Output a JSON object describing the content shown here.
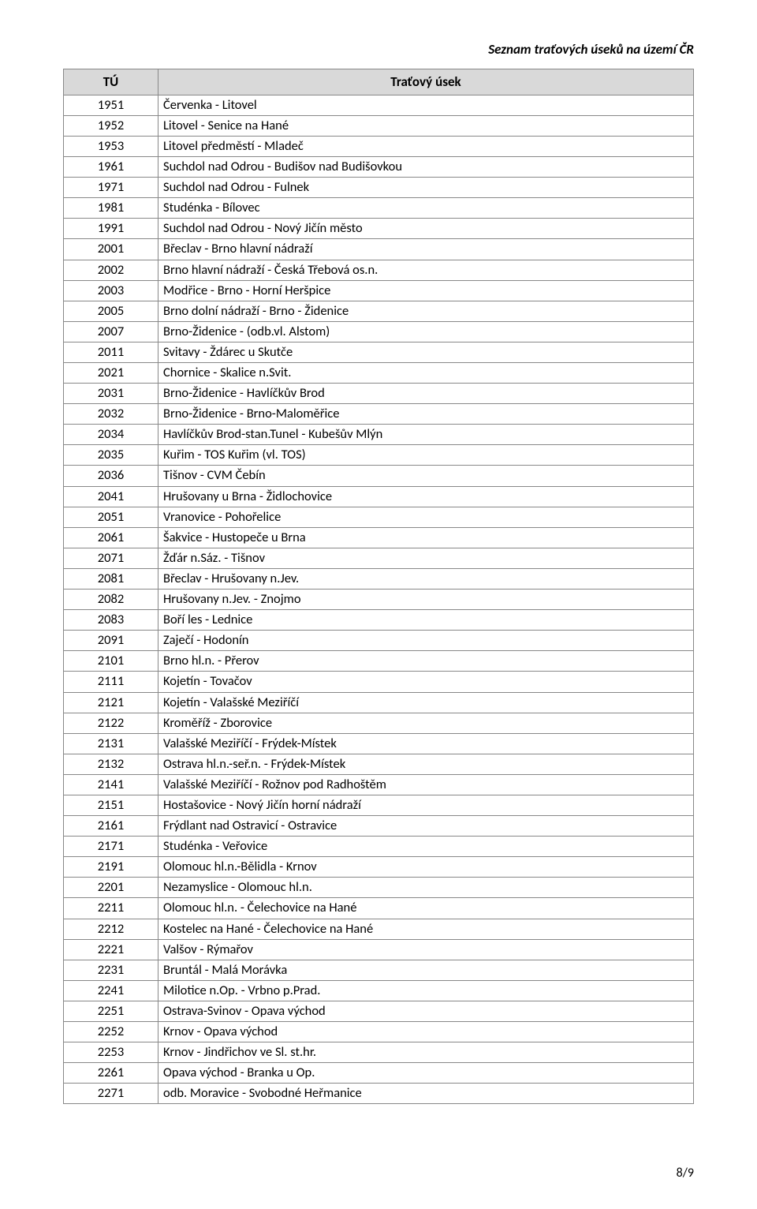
{
  "doc_title": "Seznam traťových úseků na území ČR",
  "page_number": "8/9",
  "header": {
    "col1": "TÚ",
    "col2": "Traťový úsek"
  },
  "rows": [
    {
      "tu": "1951",
      "name": "Červenka - Litovel"
    },
    {
      "tu": "1952",
      "name": "Litovel - Senice na Hané"
    },
    {
      "tu": "1953",
      "name": "Litovel předměstí - Mladeč"
    },
    {
      "tu": "1961",
      "name": "Suchdol nad Odrou - Budišov nad Budišovkou"
    },
    {
      "tu": "1971",
      "name": "Suchdol nad Odrou - Fulnek"
    },
    {
      "tu": "1981",
      "name": "Studénka - Bílovec"
    },
    {
      "tu": "1991",
      "name": "Suchdol nad Odrou - Nový Jičín město"
    },
    {
      "tu": "2001",
      "name": "Břeclav - Brno hlavní nádraží"
    },
    {
      "tu": "2002",
      "name": "Brno hlavní nádraží - Česká Třebová os.n."
    },
    {
      "tu": "2003",
      "name": "Modřice - Brno - Horní Heršpice"
    },
    {
      "tu": "2005",
      "name": "Brno dolní nádraží - Brno - Židenice"
    },
    {
      "tu": "2007",
      "name": "Brno-Židenice - (odb.vl. Alstom)"
    },
    {
      "tu": "2011",
      "name": "Svitavy - Ždárec u Skutče"
    },
    {
      "tu": "2021",
      "name": "Chornice - Skalice n.Svit."
    },
    {
      "tu": "2031",
      "name": "Brno-Židenice - Havlíčkův Brod"
    },
    {
      "tu": "2032",
      "name": "Brno-Židenice - Brno-Maloměřice"
    },
    {
      "tu": "2034",
      "name": "Havlíčkův Brod-stan.Tunel - Kubešův Mlýn"
    },
    {
      "tu": "2035",
      "name": "Kuřim - TOS Kuřim (vl. TOS)"
    },
    {
      "tu": "2036",
      "name": "Tišnov - CVM Čebín"
    },
    {
      "tu": "2041",
      "name": "Hrušovany u Brna - Židlochovice"
    },
    {
      "tu": "2051",
      "name": "Vranovice - Pohořelice"
    },
    {
      "tu": "2061",
      "name": "Šakvice - Hustopeče u Brna"
    },
    {
      "tu": "2071",
      "name": "Žďár n.Sáz. - Tišnov"
    },
    {
      "tu": "2081",
      "name": "Břeclav - Hrušovany n.Jev."
    },
    {
      "tu": "2082",
      "name": "Hrušovany n.Jev. - Znojmo"
    },
    {
      "tu": "2083",
      "name": "Boří les - Lednice"
    },
    {
      "tu": "2091",
      "name": "Zaječí - Hodonín"
    },
    {
      "tu": "2101",
      "name": "Brno hl.n. - Přerov"
    },
    {
      "tu": "2111",
      "name": "Kojetín - Tovačov"
    },
    {
      "tu": "2121",
      "name": "Kojetín - Valašské Meziříčí"
    },
    {
      "tu": "2122",
      "name": "Kroměříž - Zborovice"
    },
    {
      "tu": "2131",
      "name": "Valašské Meziříčí - Frýdek-Místek"
    },
    {
      "tu": "2132",
      "name": "Ostrava hl.n.-seř.n. - Frýdek-Místek"
    },
    {
      "tu": "2141",
      "name": "Valašské Meziříčí - Rožnov pod Radhoštěm"
    },
    {
      "tu": "2151",
      "name": "Hostašovice - Nový Jičín horní nádraží"
    },
    {
      "tu": "2161",
      "name": "Frýdlant nad Ostravicí - Ostravice"
    },
    {
      "tu": "2171",
      "name": "Studénka - Veřovice"
    },
    {
      "tu": "2191",
      "name": "Olomouc hl.n.-Bělidla - Krnov"
    },
    {
      "tu": "2201",
      "name": "Nezamyslice - Olomouc hl.n."
    },
    {
      "tu": "2211",
      "name": "Olomouc hl.n. - Čelechovice na Hané"
    },
    {
      "tu": "2212",
      "name": "Kostelec na Hané - Čelechovice na Hané"
    },
    {
      "tu": "2221",
      "name": "Valšov - Rýmařov"
    },
    {
      "tu": "2231",
      "name": "Bruntál - Malá Morávka"
    },
    {
      "tu": "2241",
      "name": "Milotice n.Op. - Vrbno p.Prad."
    },
    {
      "tu": "2251",
      "name": "Ostrava-Svinov - Opava východ"
    },
    {
      "tu": "2252",
      "name": "Krnov - Opava východ"
    },
    {
      "tu": "2253",
      "name": "Krnov - Jindřichov ve Sl. st.hr."
    },
    {
      "tu": "2261",
      "name": "Opava východ - Branka u Op."
    },
    {
      "tu": "2271",
      "name": "odb. Moravice - Svobodné Heřmanice"
    }
  ]
}
